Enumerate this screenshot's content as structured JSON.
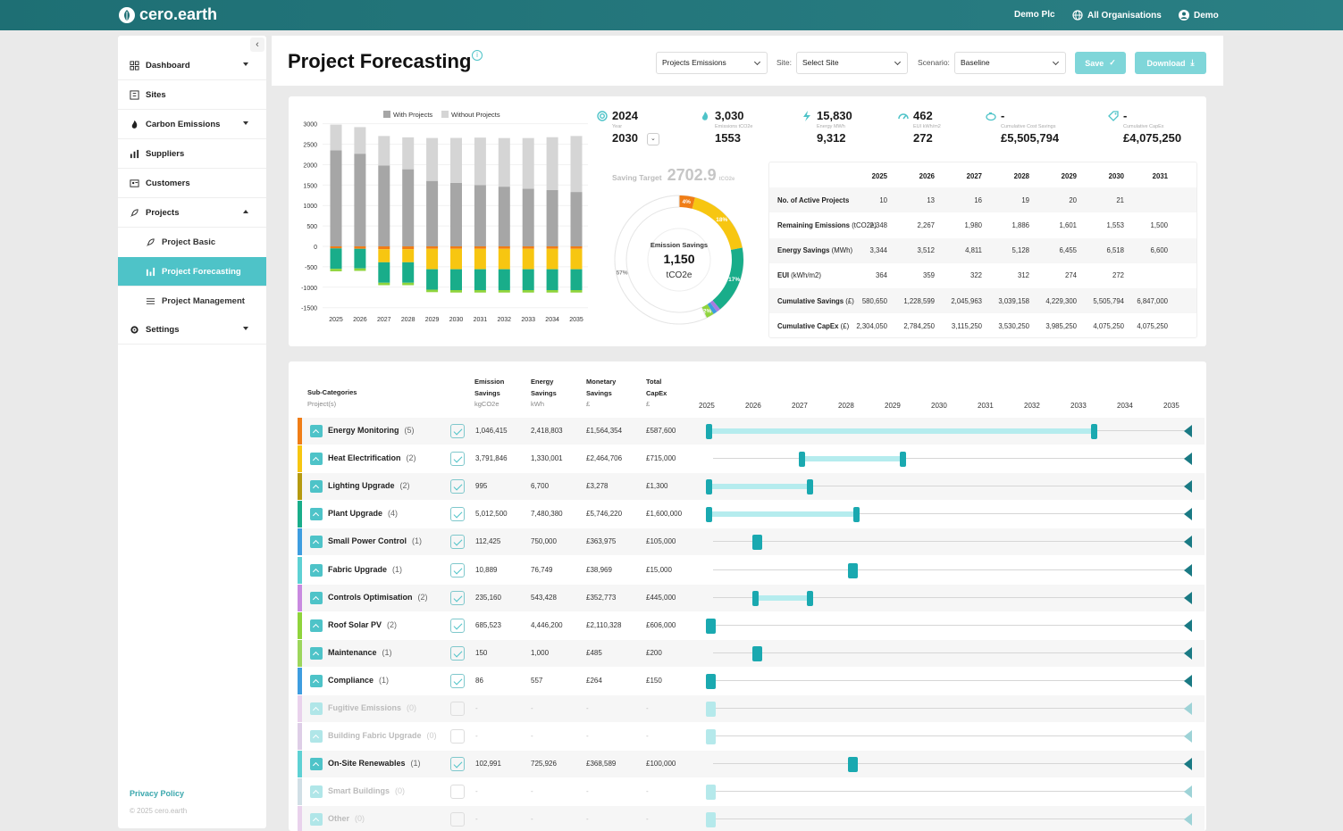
{
  "app": {
    "logo": "cero.earth",
    "org": "Demo Plc",
    "all_orgs": "All Organisations",
    "user": "Demo"
  },
  "sidebar": {
    "items": [
      {
        "label": "Dashboard",
        "icon": "grid-icon",
        "caret": "down"
      },
      {
        "label": "Sites",
        "icon": "building-icon"
      },
      {
        "label": "Carbon Emissions",
        "icon": "flame-icon",
        "caret": "down"
      },
      {
        "label": "Suppliers",
        "icon": "chart-icon"
      },
      {
        "label": "Customers",
        "icon": "person-card-icon"
      },
      {
        "label": "Projects",
        "icon": "rocket-icon",
        "caret": "up"
      },
      {
        "label": "Project Basic",
        "icon": "rocket-icon",
        "sub": true
      },
      {
        "label": "Project Forecasting",
        "icon": "bars-icon",
        "sub": true,
        "active": true
      },
      {
        "label": "Project Management",
        "icon": "list-icon",
        "sub": true
      },
      {
        "label": "Settings",
        "icon": "gear-icon",
        "caret": "down"
      }
    ],
    "privacy": "Privacy Policy",
    "copyright": "© 2025 cero.earth"
  },
  "header": {
    "title": "Project Forecasting",
    "type_select": "Projects Emissions",
    "site_label": "Site:",
    "site_select": "Select Site",
    "scenario_label": "Scenario:",
    "scenario_select": "Baseline",
    "save": "Save",
    "download": "Download"
  },
  "stats": [
    {
      "icon": "target-icon",
      "v1": "2024",
      "sub": "Year",
      "v2": "2030"
    },
    {
      "icon": "flame-icon",
      "v1": "3,030",
      "sub": "Emissions tCO2e",
      "v2": "1553"
    },
    {
      "icon": "bolt-icon",
      "v1": "15,830",
      "sub": "Energy MWh",
      "v2": "9,312"
    },
    {
      "icon": "gauge-icon",
      "v1": "462",
      "sub": "EUI kWh/m2",
      "v2": "272"
    },
    {
      "icon": "piggy-bank-icon",
      "v1": "-",
      "sub": "Cumulative Cost Savings",
      "v2": "£5,505,794"
    },
    {
      "icon": "tag-icon",
      "v1": "-",
      "sub": "Cumulative CapEx",
      "v2": "£4,075,250"
    }
  ],
  "saving_target": {
    "label": "Saving Target",
    "value": "2702.9",
    "unit": "tCO2e"
  },
  "donut": {
    "title": "Emission Savings",
    "value": "1,150",
    "unit": "tCO2e",
    "slices": [
      {
        "pct": 4,
        "color": "#f07d16",
        "label": "4%"
      },
      {
        "pct": 18,
        "color": "#f7c611",
        "label": "18%"
      },
      {
        "pct": 17,
        "color": "#19ad8a",
        "label": "17%"
      },
      {
        "pct": 1,
        "color": "#a87be0",
        "label": ""
      },
      {
        "pct": 1,
        "color": "#3e9de0",
        "label": ""
      },
      {
        "pct": 2,
        "color": "#8fd43c",
        "label": "2%"
      },
      {
        "pct": 57,
        "color": "#ffffff",
        "label": "57%"
      }
    ]
  },
  "chart_data": {
    "type": "bar",
    "legend": [
      "With Projects",
      "Without Projects"
    ],
    "categories": [
      "2025",
      "2026",
      "2027",
      "2028",
      "2029",
      "2030",
      "2031",
      "2032",
      "2033",
      "2034",
      "2035"
    ],
    "ylim": [
      -1500,
      3000
    ],
    "yticks": [
      "3000",
      "2500",
      "2000",
      "1500",
      "1000",
      "500",
      "0",
      "-500",
      "-1000",
      "-1500"
    ],
    "series": [
      {
        "name": "With Projects",
        "color": "#a6a6a6",
        "values": [
          2348,
          2267,
          1980,
          1886,
          1601,
          1553,
          1500,
          1460,
          1410,
          1380,
          1330
        ]
      },
      {
        "name": "Without Projects",
        "color": "#d5d5d5",
        "values": [
          630,
          650,
          720,
          780,
          1050,
          1100,
          1160,
          1190,
          1240,
          1290,
          1370
        ]
      },
      {
        "color": "#f07d16",
        "values": [
          -50,
          -60,
          -70,
          -70,
          -60,
          -60,
          -60,
          -60,
          -60,
          -60,
          -60
        ]
      },
      {
        "color": "#f7c611",
        "values": [
          0,
          0,
          -320,
          -320,
          -500,
          -500,
          -500,
          -500,
          -500,
          -500,
          -500
        ]
      },
      {
        "color": "#19ad8a",
        "values": [
          -500,
          -480,
          -500,
          -500,
          -500,
          -510,
          -510,
          -510,
          -510,
          -510,
          -510
        ]
      },
      {
        "color": "#8fd43c",
        "values": [
          -60,
          -60,
          -60,
          -60,
          -60,
          -60,
          -60,
          -60,
          -60,
          -60,
          -60
        ]
      }
    ]
  },
  "table": {
    "years": [
      "2025",
      "2026",
      "2027",
      "2028",
      "2029",
      "2030",
      "2031"
    ],
    "rows": [
      {
        "label": "No. of Active Projects",
        "unit": "",
        "vals": [
          "10",
          "13",
          "16",
          "19",
          "20",
          "21",
          ""
        ]
      },
      {
        "label": "Remaining Emissions",
        "unit": " (tCO2e)",
        "vals": [
          "2,348",
          "2,267",
          "1,980",
          "1,886",
          "1,601",
          "1,553",
          "1,500"
        ]
      },
      {
        "label": "Energy Savings",
        "unit": " (MWh)",
        "vals": [
          "3,344",
          "3,512",
          "4,811",
          "5,128",
          "6,455",
          "6,518",
          "6,600"
        ]
      },
      {
        "label": "EUI",
        "unit": " (kWh/m2)",
        "vals": [
          "364",
          "359",
          "322",
          "312",
          "274",
          "272",
          ""
        ]
      },
      {
        "label": "Cumulative Savings",
        "unit": " (£)",
        "vals": [
          "580,650",
          "1,228,599",
          "2,045,963",
          "3,039,158",
          "4,229,300",
          "5,505,794",
          "6,847,000"
        ]
      },
      {
        "label": "Cumulative CapEx",
        "unit": " (£)",
        "vals": [
          "2,304,050",
          "2,784,250",
          "3,115,250",
          "3,530,250",
          "3,985,250",
          "4,075,250",
          "4,075,250"
        ]
      }
    ]
  },
  "projects": {
    "headers": {
      "subcat": "Sub-Categories",
      "projects": "Project(s)",
      "em1": "Emission",
      "em2": "Savings",
      "em3": "kgCO2e",
      "en1": "Energy",
      "en2": "Savings",
      "en3": "kWh",
      "mo1": "Monetary",
      "mo2": "Savings",
      "mo3": "£",
      "ca1": "Total",
      "ca2": "CapEx",
      "ca3": "£"
    },
    "years": [
      "2025",
      "2026",
      "2027",
      "2028",
      "2029",
      "2030",
      "2031",
      "2032",
      "2033",
      "2034",
      "2035"
    ],
    "rows": [
      {
        "name": "Energy Monitoring",
        "count": "(5)",
        "color": "#f07d16",
        "on": true,
        "em": "1,046,415",
        "en": "2,418,803",
        "mo": "£1,564,354",
        "ca": "£587,600",
        "start": 0,
        "end": 8.3
      },
      {
        "name": "Heat Electrification",
        "count": "(2)",
        "color": "#f7c611",
        "on": true,
        "em": "3,791,846",
        "en": "1,330,001",
        "mo": "£2,464,706",
        "ca": "£715,000",
        "start": 2,
        "end": 4.2
      },
      {
        "name": "Lighting Upgrade",
        "count": "(2)",
        "color": "#b59a10",
        "on": true,
        "em": "995",
        "en": "6,700",
        "mo": "£3,278",
        "ca": "£1,300",
        "start": 0,
        "end": 2.2
      },
      {
        "name": "Plant Upgrade",
        "count": "(4)",
        "color": "#19ad8a",
        "on": true,
        "em": "5,012,500",
        "en": "7,480,380",
        "mo": "£5,746,220",
        "ca": "£1,600,000",
        "start": 0,
        "end": 3.2
      },
      {
        "name": "Small Power Control",
        "count": "(1)",
        "color": "#3e9de0",
        "on": true,
        "em": "112,425",
        "en": "750,000",
        "mo": "£363,975",
        "ca": "£105,000",
        "start": 1,
        "end": 1.1
      },
      {
        "name": "Fabric Upgrade",
        "count": "(1)",
        "color": "#5ed1d4",
        "on": true,
        "em": "10,889",
        "en": "76,749",
        "mo": "£38,969",
        "ca": "£15,000",
        "start": 3.05,
        "end": 3.15
      },
      {
        "name": "Controls Optimisation",
        "count": "(2)",
        "color": "#c98ae0",
        "on": true,
        "em": "235,160",
        "en": "543,428",
        "mo": "£352,773",
        "ca": "£445,000",
        "start": 1,
        "end": 2.2
      },
      {
        "name": "Roof Solar PV",
        "count": "(2)",
        "color": "#8fd43c",
        "on": true,
        "em": "685,523",
        "en": "4,446,200",
        "mo": "£2,110,328",
        "ca": "£606,000",
        "start": 0,
        "end": 0.1
      },
      {
        "name": "Maintenance",
        "count": "(1)",
        "color": "#9cd65c",
        "on": true,
        "em": "150",
        "en": "1,000",
        "mo": "£485",
        "ca": "£200",
        "start": 1,
        "end": 1.1
      },
      {
        "name": "Compliance",
        "count": "(1)",
        "color": "#3e9de0",
        "on": true,
        "em": "86",
        "en": "557",
        "mo": "£264",
        "ca": "£150",
        "start": 0,
        "end": 0.1
      },
      {
        "name": "Fugitive Emissions",
        "count": "(0)",
        "color": "#d9a6e0",
        "on": false,
        "em": "-",
        "en": "-",
        "mo": "-",
        "ca": "-",
        "start": 0,
        "end": 0.1
      },
      {
        "name": "Building Fabric Upgrade",
        "count": "(0)",
        "color": "#b592c9",
        "on": false,
        "em": "-",
        "en": "-",
        "mo": "-",
        "ca": "-",
        "start": 0,
        "end": 0.1
      },
      {
        "name": "On-Site Renewables",
        "count": "(1)",
        "color": "#5ed1d4",
        "on": true,
        "em": "102,991",
        "en": "725,926",
        "mo": "£368,589",
        "ca": "£100,000",
        "start": 3.05,
        "end": 3.15
      },
      {
        "name": "Smart Buildings",
        "count": "(0)",
        "color": "#9ab8c8",
        "on": false,
        "em": "-",
        "en": "-",
        "mo": "-",
        "ca": "-",
        "start": 0,
        "end": 0.1
      },
      {
        "name": "Other",
        "count": "(0)",
        "color": "#d9a6e0",
        "on": false,
        "em": "-",
        "en": "-",
        "mo": "-",
        "ca": "-",
        "start": 0,
        "end": 0.1
      }
    ]
  },
  "colors": {
    "accent": "#4ec3c8",
    "topbar": "#1e6f74"
  }
}
